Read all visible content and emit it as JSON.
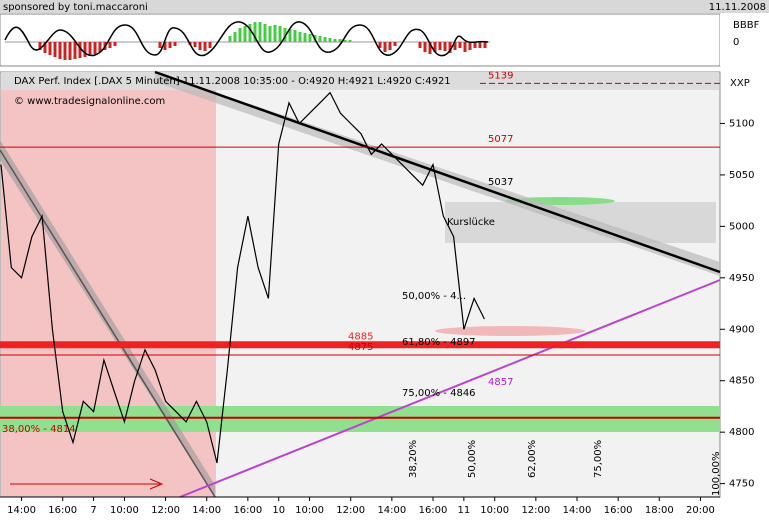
{
  "header": {
    "left": "sponsored by toni.maccaroni",
    "right": "11.11.2008"
  },
  "indicator": {
    "label": "BBBF",
    "ytick": "0"
  },
  "chart_data": {
    "type": "line",
    "title": "DAX Perf. Index [.DAX  5 Minuten] 11.11.2008 10:35:00 - O:4920 H:4921 L:4920 C:4921",
    "watermark": "© www.tradesignalonline.com",
    "axis_label": "XXP",
    "color": "#000000",
    "categories": [
      "",
      "",
      "14:00",
      "",
      "",
      "",
      "16:00",
      "",
      "",
      "7",
      "",
      "",
      "10:00",
      "",
      "",
      "",
      "12:00",
      "",
      "",
      "",
      "14:00",
      "",
      "",
      "",
      "16:00",
      "",
      "",
      "10",
      "",
      "",
      "10:00",
      "",
      "",
      "",
      "12:00",
      "",
      "",
      "",
      "14:00",
      "",
      "",
      "",
      "16:00",
      "",
      "",
      "11",
      "",
      "",
      "10:00",
      "",
      "",
      "",
      "12:00",
      "",
      "",
      "",
      "14:00",
      "",
      "",
      "",
      "16:00",
      "",
      "",
      "",
      "18:00",
      "",
      "",
      "",
      "20:00",
      ""
    ],
    "values": [
      5060,
      4960,
      4950,
      4990,
      5010,
      4900,
      4820,
      4790,
      4830,
      4820,
      4870,
      4840,
      4810,
      4850,
      4880,
      4860,
      4830,
      4820,
      4810,
      4830,
      4810,
      4770,
      4860,
      4960,
      5010,
      4960,
      4930,
      5080,
      5120,
      5100,
      5110,
      5120,
      5130,
      5110,
      5100,
      5090,
      5070,
      5080,
      5070,
      5060,
      5050,
      5040,
      5060,
      5010,
      4990,
      4900,
      4930,
      4910,
      null,
      null,
      null,
      null,
      null,
      null,
      null,
      null,
      null,
      null,
      null,
      null,
      null,
      null,
      null,
      null,
      null,
      null,
      null,
      null,
      null,
      null
    ],
    "ylim": [
      4737,
      5150
    ],
    "yticks": [
      4750,
      4800,
      4850,
      4900,
      4950,
      5000,
      5050,
      5100
    ],
    "levels": [
      {
        "value": 5139,
        "label": "5139",
        "color": "#cc0000"
      },
      {
        "value": 5077,
        "label": "5077",
        "color": "#cc0000"
      },
      {
        "value": 4885,
        "label": "4885",
        "color": "#ee2222"
      },
      {
        "value": 4875,
        "label": "4875",
        "color": "#cc0000"
      },
      {
        "value": 4814,
        "label": "38,00% - 4814",
        "color": "#cc0000"
      }
    ],
    "annotations": [
      "5037",
      "Kurslücke",
      "50,00% - 4...",
      "61,80% - 4897",
      "75,00% - 4846",
      "4857",
      "38,20%",
      "50,00%",
      "62,00%",
      "75,00%",
      "100,00%"
    ]
  }
}
